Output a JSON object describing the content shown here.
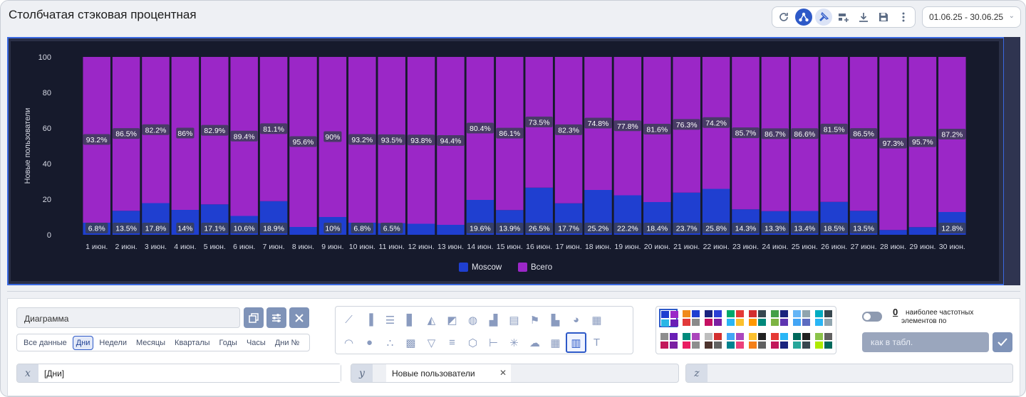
{
  "header": {
    "title": "Столбчатая стэковая процентная",
    "date_range": "01.06.25 - 30.06.25"
  },
  "toolbar": {
    "icons": [
      "refresh-icon",
      "share-icon",
      "pin-icon",
      "add-widget-icon",
      "download-icon",
      "save-icon",
      "more-icon"
    ]
  },
  "chart_data": {
    "type": "bar",
    "stacked": "percent",
    "ylabel": "Новые пользователи",
    "ylim": [
      0,
      100
    ],
    "yticks": [
      "0",
      "20",
      "40",
      "60",
      "80",
      "100"
    ],
    "categories": [
      "1 июн.",
      "2 июн.",
      "3 июн.",
      "4 июн.",
      "5 июн.",
      "6 июн.",
      "7 июн.",
      "8 июн.",
      "9 июн.",
      "10 июн.",
      "11 июн.",
      "12 июн.",
      "13 июн.",
      "14 июн.",
      "15 июн.",
      "16 июн.",
      "17 июн.",
      "18 июн.",
      "19 июн.",
      "20 июн.",
      "21 июн.",
      "22 июн.",
      "23 июн.",
      "24 июн.",
      "25 июн.",
      "26 июн.",
      "27 июн.",
      "28 июн.",
      "29 июн.",
      "30 июн."
    ],
    "series": [
      {
        "name": "Moscow",
        "color": "#1f3fd0",
        "values": [
          6.8,
          13.5,
          17.8,
          14,
          17.1,
          10.6,
          18.9,
          4.4,
          10,
          6.8,
          6.5,
          6.2,
          5.6,
          19.6,
          13.9,
          26.5,
          17.7,
          25.2,
          22.2,
          18.4,
          23.7,
          25.8,
          14.3,
          13.3,
          13.4,
          18.5,
          13.5,
          2.7,
          4.3,
          12.8
        ],
        "labels": [
          "6.8%",
          "13.5%",
          "17.8%",
          "14%",
          "17.1%",
          "10.6%",
          "18.9%",
          "",
          "10%",
          "6.8%",
          "6.5%",
          "",
          "",
          "19.6%",
          "13.9%",
          "26.5%",
          "17.7%",
          "25.2%",
          "22.2%",
          "18.4%",
          "23.7%",
          "25.8%",
          "14.3%",
          "13.3%",
          "13.4%",
          "18.5%",
          "13.5%",
          "",
          "",
          "12.8%"
        ]
      },
      {
        "name": "Всего",
        "color": "#9b27c7",
        "values": [
          93.2,
          86.5,
          82.2,
          86,
          82.9,
          89.4,
          81.1,
          95.6,
          90,
          93.2,
          93.5,
          93.8,
          94.4,
          80.4,
          86.1,
          73.5,
          82.3,
          74.8,
          77.8,
          81.6,
          76.3,
          74.2,
          85.7,
          86.7,
          86.6,
          81.5,
          86.5,
          97.3,
          95.7,
          87.2
        ],
        "labels": [
          "93.2%",
          "86.5%",
          "82.2%",
          "86%",
          "82.9%",
          "89.4%",
          "81.1%",
          "95.6%",
          "90%",
          "93.2%",
          "93.5%",
          "93.8%",
          "94.4%",
          "80.4%",
          "86.1%",
          "73.5%",
          "82.3%",
          "74.8%",
          "77.8%",
          "81.6%",
          "76.3%",
          "74.2%",
          "85.7%",
          "86.7%",
          "86.6%",
          "81.5%",
          "86.5%",
          "97.3%",
          "95.7%",
          "87.2%"
        ]
      }
    ],
    "legend_position": "bottom",
    "grid": false
  },
  "settings": {
    "name_value": "Диаграмма",
    "periods": [
      "Все данные",
      "Дни",
      "Недели",
      "Месяцы",
      "Кварталы",
      "Годы",
      "Часы",
      "Дни №"
    ],
    "selected_period": "Дни",
    "chart_type_icons_row1": [
      "line-chart-icon",
      "bar-chart-icon",
      "horizontal-bar-icon",
      "stacked-bar-icon",
      "area-chart-icon",
      "area-bar-icon",
      "donut-chart-icon",
      "pictorial-bar-icon",
      "calendar-chart-icon",
      "flag-chart-icon",
      "sorted-bar-icon",
      "pie-chart-icon",
      "grid-widget-icon"
    ],
    "chart_type_icons_row2": [
      "gauge-icon",
      "bubble-icon",
      "scatter-icon",
      "heatmap-icon",
      "funnel-icon",
      "horizontal-stacked-icon",
      "polygon-icon",
      "tree-icon",
      "network-icon",
      "cloud-icon",
      "table-icon",
      "percent-stacked-bar-icon",
      "text-icon"
    ],
    "selected_chart_type": "percent-stacked-bar-icon",
    "palettes": [
      [
        "#1f3fd0",
        "#9b27c7",
        "#29b6e6",
        "#6a1fb5"
      ],
      [
        "#f08a1c",
        "#1f3fd0",
        "#e23a3a",
        "#8a8a8a"
      ],
      [
        "#1a237e",
        "#2b3fd6",
        "#c51162",
        "#7b1fa2"
      ],
      [
        "#00a86b",
        "#e53935",
        "#29b6f6",
        "#fbc02d"
      ],
      [
        "#d32f2f",
        "#37474f",
        "#ff9800",
        "#00897b"
      ],
      [
        "#43a047",
        "#1a237e",
        "#7cb342",
        "#5e35b1"
      ],
      [
        "#64b5f6",
        "#90a4ae",
        "#42a5f5",
        "#5c6bc0"
      ],
      [
        "#00acc1",
        "#37474f",
        "#29b6f6",
        "#90a4ae"
      ],
      [
        "#8e8e8e",
        "#6a1fb5",
        "#c2185b",
        "#7b1fa2"
      ],
      [
        "#00897b",
        "#ab47bc",
        "#e91e63",
        "#8e8e8e"
      ],
      [
        "#bdbdbd",
        "#d32f2f",
        "#4e342e",
        "#616161"
      ],
      [
        "#42a5f5",
        "#ab47bc",
        "#00838f",
        "#ec407a"
      ],
      [
        "#fbc02d",
        "#212121",
        "#f57f17",
        "#616161"
      ],
      [
        "#e53935",
        "#29b6f6",
        "#c2185b",
        "#1a237e"
      ],
      [
        "#00695c",
        "#212121",
        "#26a69a",
        "#37474f"
      ],
      [
        "#8bc34a",
        "#616161",
        "#aeea00",
        "#00695c"
      ]
    ],
    "top_n_value": "0",
    "top_n_label": "наиболее частотных элементов по",
    "top_n_placeholder": "как в табл.",
    "x_axis_tag": "x",
    "x_axis_value": "[Дни]",
    "y_axis_tag": "y",
    "y_axis_value": "Новые пользователи",
    "z_axis_tag": "z"
  }
}
